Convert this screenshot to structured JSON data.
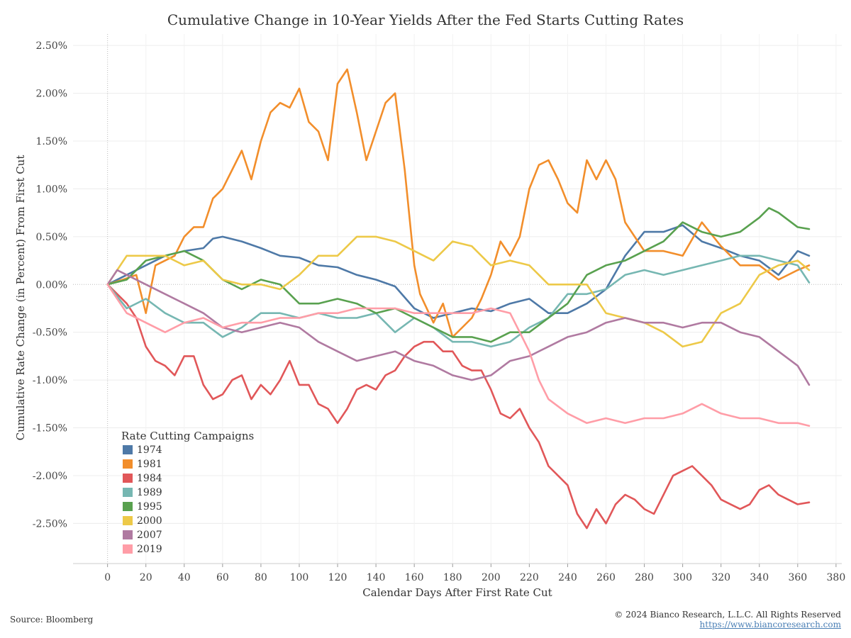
{
  "title": "Cumulative Change in 10-Year Yields After the Fed Starts Cutting Rates",
  "footer": {
    "source": "Source: Bloomberg",
    "copyright": "© 2024 Bianco Research, L.L.C. All Rights Reserved",
    "url": "https://www.biancoresearch.com"
  },
  "chart_data": {
    "type": "line",
    "title": "Cumulative Change in 10-Year Yields After the Fed Starts Cutting Rates",
    "xlabel": "Calendar Days After First Rate Cut",
    "ylabel": "Cumulative Rate Change (in Percent) From First Cut",
    "xlim": [
      -18,
      383
    ],
    "ylim": [
      -2.92,
      2.62
    ],
    "x_ticks": [
      0,
      20,
      40,
      60,
      80,
      100,
      120,
      140,
      160,
      180,
      200,
      220,
      240,
      260,
      280,
      300,
      320,
      340,
      360,
      380
    ],
    "x_tick_labels": [
      "0",
      "20",
      "40",
      "60",
      "80",
      "100",
      "120",
      "140",
      "160",
      "180",
      "200",
      "220",
      "240",
      "260",
      "280",
      "300",
      "320",
      "340",
      "360",
      "380"
    ],
    "y_ticks": [
      2.5,
      2.0,
      1.5,
      1.0,
      0.5,
      0.0,
      -0.5,
      -1.0,
      -1.5,
      -2.0,
      -2.5
    ],
    "y_tick_labels": [
      "2.50%",
      "2.00%",
      "1.50%",
      "1.00%",
      "0.50%",
      "0.00%",
      "-0.50%",
      "-1.00%",
      "-1.50%",
      "-2.00%",
      "-2.50%"
    ],
    "grid": true,
    "legend_title": "Rate Cutting Campaigns",
    "legend_position": "bottom-left",
    "series": [
      {
        "name": "1974",
        "color": "#4e79a7",
        "x": [
          0,
          10,
          20,
          30,
          40,
          50,
          55,
          60,
          70,
          80,
          90,
          100,
          110,
          120,
          130,
          140,
          150,
          160,
          170,
          180,
          190,
          200,
          210,
          220,
          230,
          240,
          250,
          260,
          270,
          280,
          290,
          300,
          310,
          320,
          330,
          340,
          350,
          360,
          366
        ],
        "y": [
          0.0,
          0.1,
          0.2,
          0.3,
          0.35,
          0.38,
          0.48,
          0.5,
          0.45,
          0.38,
          0.3,
          0.28,
          0.2,
          0.18,
          0.1,
          0.05,
          -0.02,
          -0.25,
          -0.35,
          -0.3,
          -0.25,
          -0.28,
          -0.2,
          -0.15,
          -0.3,
          -0.3,
          -0.2,
          -0.05,
          0.3,
          0.55,
          0.55,
          0.62,
          0.45,
          0.38,
          0.3,
          0.25,
          0.1,
          0.35,
          0.3
        ]
      },
      {
        "name": "1981",
        "color": "#f28e2b",
        "x": [
          0,
          8,
          15,
          20,
          25,
          30,
          35,
          40,
          45,
          50,
          55,
          60,
          65,
          70,
          75,
          80,
          85,
          90,
          95,
          100,
          105,
          110,
          115,
          120,
          125,
          130,
          135,
          140,
          145,
          150,
          155,
          160,
          163,
          170,
          175,
          180,
          185,
          190,
          195,
          200,
          205,
          210,
          215,
          220,
          225,
          230,
          235,
          240,
          245,
          250,
          255,
          260,
          265,
          270,
          275,
          280,
          290,
          300,
          310,
          320,
          330,
          340,
          350,
          360,
          366
        ],
        "y": [
          0.0,
          0.05,
          0.1,
          -0.3,
          0.2,
          0.25,
          0.3,
          0.5,
          0.6,
          0.6,
          0.9,
          1.0,
          1.2,
          1.4,
          1.1,
          1.5,
          1.8,
          1.9,
          1.85,
          2.05,
          1.7,
          1.6,
          1.3,
          2.1,
          2.25,
          1.8,
          1.3,
          1.6,
          1.9,
          2.0,
          1.2,
          0.2,
          -0.1,
          -0.4,
          -0.2,
          -0.55,
          -0.45,
          -0.35,
          -0.15,
          0.1,
          0.45,
          0.3,
          0.5,
          1.0,
          1.25,
          1.3,
          1.1,
          0.85,
          0.75,
          1.3,
          1.1,
          1.3,
          1.1,
          0.65,
          0.5,
          0.35,
          0.35,
          0.3,
          0.65,
          0.4,
          0.2,
          0.2,
          0.05,
          0.15,
          0.2
        ]
      },
      {
        "name": "1984",
        "color": "#e15759",
        "x": [
          0,
          10,
          15,
          20,
          25,
          30,
          35,
          40,
          45,
          50,
          55,
          60,
          65,
          70,
          75,
          80,
          85,
          90,
          95,
          100,
          105,
          110,
          115,
          120,
          125,
          130,
          135,
          140,
          145,
          150,
          155,
          160,
          165,
          170,
          175,
          180,
          185,
          190,
          195,
          200,
          205,
          210,
          215,
          220,
          225,
          230,
          235,
          240,
          245,
          250,
          255,
          260,
          265,
          270,
          275,
          280,
          285,
          290,
          295,
          300,
          305,
          310,
          315,
          320,
          325,
          330,
          335,
          340,
          345,
          350,
          355,
          360,
          366
        ],
        "y": [
          0.0,
          -0.2,
          -0.35,
          -0.65,
          -0.8,
          -0.85,
          -0.95,
          -0.75,
          -0.75,
          -1.05,
          -1.2,
          -1.15,
          -1.0,
          -0.95,
          -1.2,
          -1.05,
          -1.15,
          -1.0,
          -0.8,
          -1.05,
          -1.05,
          -1.25,
          -1.3,
          -1.45,
          -1.3,
          -1.1,
          -1.05,
          -1.1,
          -0.95,
          -0.9,
          -0.75,
          -0.65,
          -0.6,
          -0.6,
          -0.7,
          -0.7,
          -0.85,
          -0.9,
          -0.9,
          -1.1,
          -1.35,
          -1.4,
          -1.3,
          -1.5,
          -1.65,
          -1.9,
          -2.0,
          -2.1,
          -2.4,
          -2.55,
          -2.35,
          -2.5,
          -2.3,
          -2.2,
          -2.25,
          -2.35,
          -2.4,
          -2.2,
          -2.0,
          -1.95,
          -1.9,
          -2.0,
          -2.1,
          -2.25,
          -2.3,
          -2.35,
          -2.3,
          -2.15,
          -2.1,
          -2.2,
          -2.25,
          -2.3,
          -2.28
        ]
      },
      {
        "name": "1989",
        "color": "#76b7b2",
        "x": [
          0,
          10,
          20,
          30,
          40,
          50,
          60,
          70,
          80,
          90,
          100,
          110,
          120,
          130,
          140,
          150,
          160,
          170,
          180,
          190,
          200,
          210,
          220,
          230,
          240,
          250,
          260,
          270,
          280,
          290,
          300,
          310,
          320,
          330,
          340,
          350,
          360,
          366
        ],
        "y": [
          0.0,
          -0.25,
          -0.15,
          -0.3,
          -0.4,
          -0.4,
          -0.55,
          -0.45,
          -0.3,
          -0.3,
          -0.35,
          -0.3,
          -0.35,
          -0.35,
          -0.3,
          -0.5,
          -0.35,
          -0.45,
          -0.6,
          -0.6,
          -0.65,
          -0.6,
          -0.45,
          -0.35,
          -0.1,
          -0.1,
          -0.05,
          0.1,
          0.15,
          0.1,
          0.15,
          0.2,
          0.25,
          0.3,
          0.3,
          0.25,
          0.2,
          0.02
        ]
      },
      {
        "name": "1995",
        "color": "#59a14f",
        "x": [
          0,
          10,
          20,
          30,
          40,
          50,
          60,
          70,
          80,
          90,
          100,
          110,
          120,
          130,
          140,
          150,
          160,
          170,
          180,
          190,
          200,
          210,
          220,
          230,
          240,
          250,
          260,
          270,
          280,
          290,
          300,
          310,
          320,
          330,
          340,
          345,
          350,
          360,
          366
        ],
        "y": [
          0.0,
          0.05,
          0.25,
          0.3,
          0.35,
          0.25,
          0.05,
          -0.05,
          0.05,
          0.0,
          -0.2,
          -0.2,
          -0.15,
          -0.2,
          -0.3,
          -0.25,
          -0.35,
          -0.45,
          -0.55,
          -0.55,
          -0.6,
          -0.5,
          -0.5,
          -0.35,
          -0.2,
          0.1,
          0.2,
          0.25,
          0.35,
          0.45,
          0.65,
          0.55,
          0.5,
          0.55,
          0.7,
          0.8,
          0.75,
          0.6,
          0.58
        ]
      },
      {
        "name": "2000",
        "color": "#edc948",
        "x": [
          0,
          10,
          20,
          30,
          40,
          50,
          60,
          70,
          80,
          90,
          100,
          110,
          120,
          130,
          140,
          150,
          160,
          170,
          180,
          190,
          200,
          210,
          220,
          230,
          240,
          250,
          260,
          270,
          280,
          290,
          300,
          310,
          320,
          330,
          340,
          350,
          360,
          366
        ],
        "y": [
          0.0,
          0.3,
          0.3,
          0.3,
          0.2,
          0.25,
          0.05,
          0.0,
          0.0,
          -0.05,
          0.1,
          0.3,
          0.3,
          0.5,
          0.5,
          0.45,
          0.35,
          0.25,
          0.45,
          0.4,
          0.2,
          0.25,
          0.2,
          0.0,
          0.0,
          0.0,
          -0.3,
          -0.35,
          -0.4,
          -0.5,
          -0.65,
          -0.6,
          -0.3,
          -0.2,
          0.1,
          0.2,
          0.25,
          0.15
        ]
      },
      {
        "name": "2007",
        "color": "#b07aa1",
        "x": [
          0,
          5,
          10,
          20,
          30,
          40,
          50,
          60,
          70,
          80,
          90,
          100,
          110,
          120,
          130,
          140,
          150,
          160,
          170,
          180,
          190,
          200,
          210,
          220,
          230,
          240,
          250,
          260,
          270,
          280,
          290,
          300,
          310,
          320,
          330,
          340,
          350,
          360,
          366
        ],
        "y": [
          0.0,
          0.15,
          0.1,
          0.0,
          -0.1,
          -0.2,
          -0.3,
          -0.45,
          -0.5,
          -0.45,
          -0.4,
          -0.45,
          -0.6,
          -0.7,
          -0.8,
          -0.75,
          -0.7,
          -0.8,
          -0.85,
          -0.95,
          -1.0,
          -0.95,
          -0.8,
          -0.75,
          -0.65,
          -0.55,
          -0.5,
          -0.4,
          -0.35,
          -0.4,
          -0.4,
          -0.45,
          -0.4,
          -0.4,
          -0.5,
          -0.55,
          -0.7,
          -0.85,
          -1.05
        ]
      },
      {
        "name": "2019",
        "color": "#ff9da7",
        "x": [
          0,
          10,
          20,
          30,
          40,
          50,
          60,
          70,
          80,
          90,
          100,
          110,
          120,
          130,
          140,
          150,
          160,
          170,
          180,
          190,
          200,
          210,
          215,
          220,
          225,
          230,
          240,
          250,
          260,
          270,
          280,
          290,
          300,
          310,
          320,
          330,
          340,
          350,
          360,
          366
        ],
        "y": [
          0.0,
          -0.3,
          -0.4,
          -0.5,
          -0.4,
          -0.35,
          -0.45,
          -0.4,
          -0.4,
          -0.35,
          -0.35,
          -0.3,
          -0.3,
          -0.25,
          -0.25,
          -0.25,
          -0.3,
          -0.3,
          -0.3,
          -0.3,
          -0.25,
          -0.3,
          -0.5,
          -0.7,
          -1.0,
          -1.2,
          -1.35,
          -1.45,
          -1.4,
          -1.45,
          -1.4,
          -1.4,
          -1.35,
          -1.25,
          -1.35,
          -1.4,
          -1.4,
          -1.45,
          -1.45,
          -1.48
        ]
      }
    ]
  }
}
